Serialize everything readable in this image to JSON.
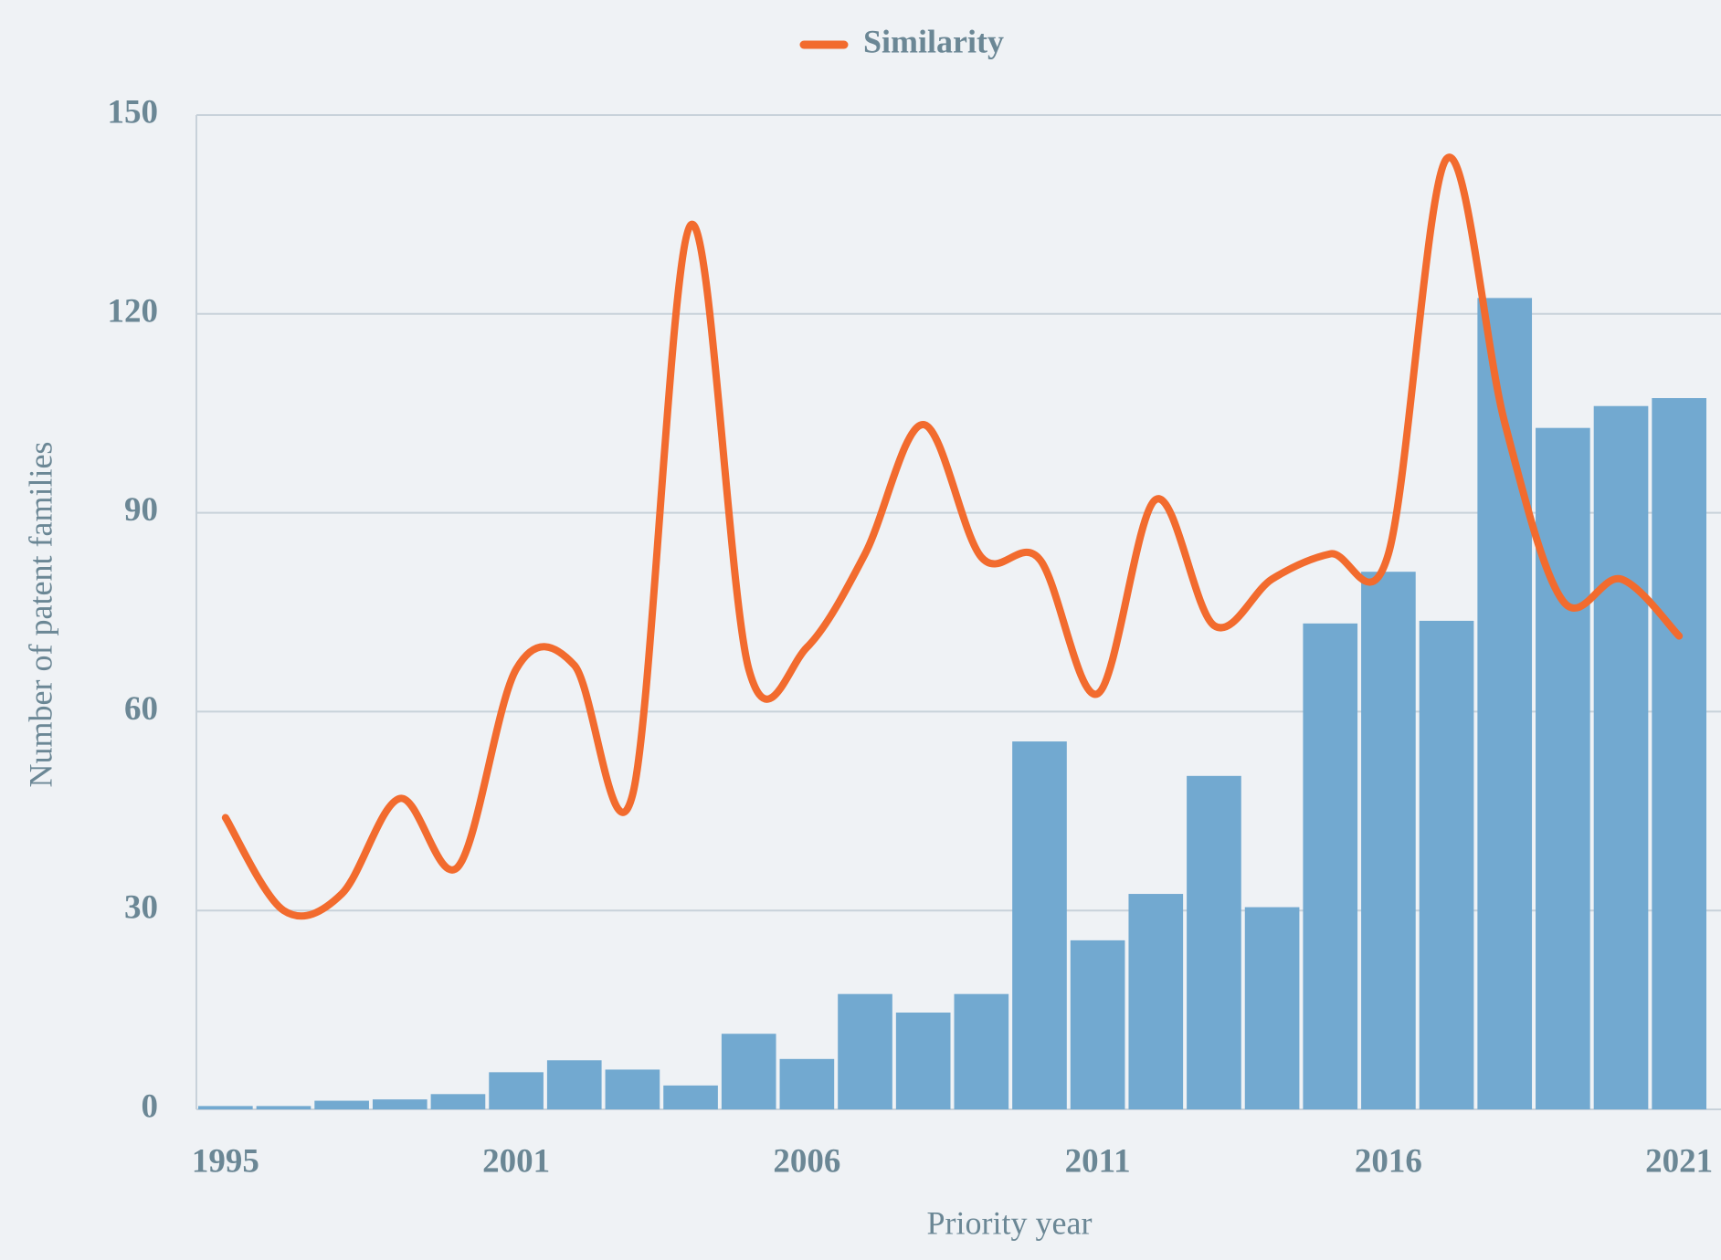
{
  "chart_data": {
    "type": "bar",
    "x_label": "Priority year",
    "y_label": "Number of patent families",
    "categories": [
      "1995",
      null,
      null,
      null,
      null,
      "2001",
      null,
      null,
      null,
      null,
      "2006",
      null,
      null,
      null,
      null,
      "2011",
      null,
      null,
      null,
      null,
      "2016",
      null,
      null,
      null,
      null,
      "2021"
    ],
    "series": [
      {
        "type": "bar",
        "color": "#72a9d0",
        "values": [
          0.5,
          0.5,
          1.3,
          1.5,
          2.3,
          5.6,
          7.4,
          6,
          3.6,
          11.4,
          7.6,
          17.4,
          14.6,
          17.4,
          55.5,
          25.5,
          32.5,
          50.3,
          30.5,
          73.3,
          81.1,
          73.7,
          122.4,
          102.8,
          106.1,
          107.3
        ]
      },
      {
        "type": "line",
        "name": "Similarity",
        "color": "#f26b2e",
        "values": [
          44,
          30,
          32.5,
          46.9,
          36.6,
          66.4,
          67,
          47.4,
          133.4,
          66.4,
          69.7,
          83.8,
          103.3,
          83.3,
          83,
          62.7,
          92,
          73,
          80,
          83.8,
          83.8,
          143.4,
          103.6,
          76.7,
          80,
          71.4
        ]
      }
    ],
    "ylim": [
      0,
      150
    ],
    "yticks": [
      0,
      30,
      60,
      90,
      120,
      150
    ],
    "grid": true,
    "legend": "top"
  }
}
